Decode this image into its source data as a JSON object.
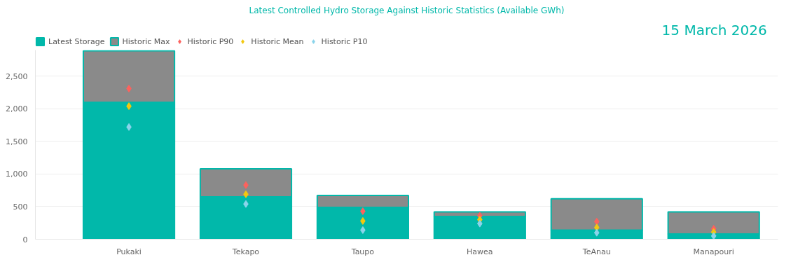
{
  "chart_data": {
    "type": "bar",
    "stacked": true,
    "title": "Latest Controlled Hydro Storage Against Historic Statistics (Available GWh)",
    "annotations": [
      "15 March 2026"
    ],
    "categories": [
      "Pukaki",
      "Tekapo",
      "Taupo",
      "Hawea",
      "TeAnau",
      "Manapouri"
    ],
    "series": [
      {
        "name": "Latest Storage",
        "color": "#01b8aa",
        "values": [
          2100,
          650,
          490,
          350,
          140,
          80
        ]
      },
      {
        "name": "Historic Max",
        "color": "#8a8a8a",
        "values": [
          790,
          430,
          180,
          70,
          480,
          340
        ]
      },
      {
        "name": "Historic P90",
        "type": "scatter",
        "color": "#fd625e",
        "x": [
          "Pukaki",
          "Tekapo",
          "Taupo",
          "Hawea",
          "TeAnau",
          "Manapouri"
        ],
        "values": [
          2310,
          830,
          430,
          360,
          270,
          160
        ]
      },
      {
        "name": "Historic Mean",
        "type": "scatter",
        "color": "#f2c80f",
        "x": [
          "Pukaki",
          "Tekapo",
          "Taupo",
          "Hawea",
          "TeAnau",
          "Manapouri"
        ],
        "values": [
          2040,
          690,
          280,
          300,
          180,
          110
        ]
      },
      {
        "name": "Historic P10",
        "type": "scatter",
        "color": "#8ad4eb",
        "x": [
          "Pukaki",
          "Tekapo",
          "Taupo",
          "Hawea",
          "TeAnau",
          "Manapouri"
        ],
        "values": [
          1720,
          540,
          140,
          240,
          100,
          50
        ]
      }
    ],
    "marker": "diamond",
    "ylim": [
      0,
      2900
    ],
    "yticks": [
      {
        "value": 0,
        "label": "0"
      },
      {
        "value": 500,
        "label": "500"
      },
      {
        "value": 1000,
        "label": "1,000"
      },
      {
        "value": 1500,
        "label": "1,500"
      },
      {
        "value": 2000,
        "label": "2,000"
      },
      {
        "value": 2500,
        "label": "2,500"
      }
    ],
    "grid": "y",
    "legend": "top left"
  }
}
